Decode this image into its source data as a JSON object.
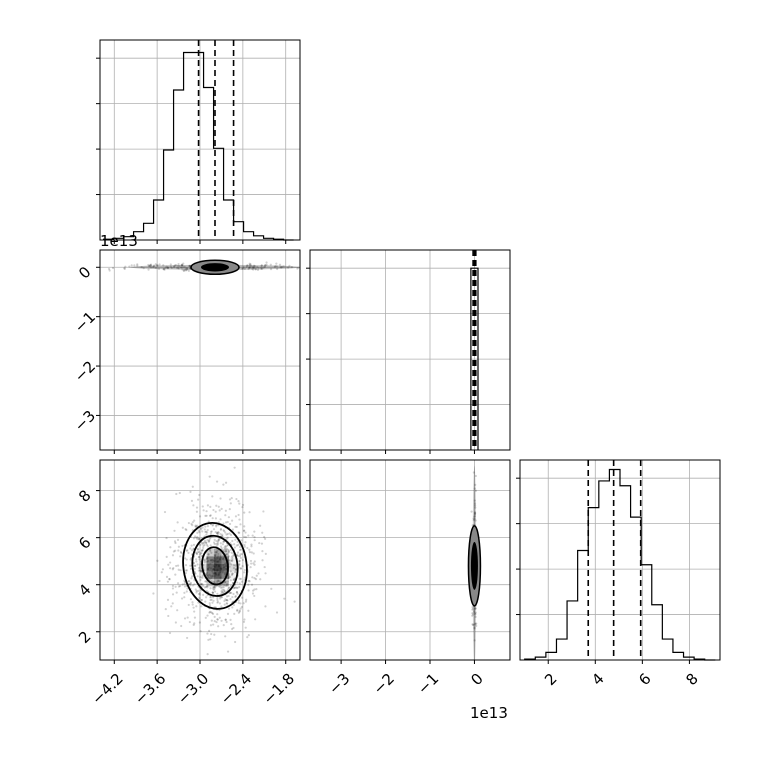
{
  "chart_data": {
    "type": "corner",
    "parameters": [
      "param-0",
      "param-1",
      "param-2"
    ],
    "grid": true,
    "panels": [
      {
        "id": "hist-0",
        "type": "histogram",
        "row": 0,
        "col": 0,
        "xlim": [
          -4.4,
          -1.6
        ],
        "bins": [
          -4.35,
          -4.21,
          -4.07,
          -3.93,
          -3.79,
          -3.65,
          -3.51,
          -3.37,
          -3.23,
          -3.09,
          -2.95,
          -2.81,
          -2.67,
          -2.53,
          -2.39,
          -2.25,
          -2.11,
          -1.97,
          -1.83,
          -1.69
        ],
        "counts": [
          1,
          2,
          4,
          10,
          20,
          48,
          108,
          180,
          225,
          225,
          183,
          110,
          48,
          22,
          10,
          5,
          2,
          1,
          0
        ],
        "ylim": [
          0,
          240
        ],
        "quantiles": [
          -3.02,
          -2.79,
          -2.53
        ]
      },
      {
        "id": "hist-1",
        "type": "histogram",
        "row": 1,
        "col": 1,
        "xlim": [
          -3.7,
          0.8
        ],
        "x_offset_label": "",
        "bins": [
          -0.08,
          0.08
        ],
        "counts": [
          1
        ],
        "ylim": [
          0,
          1.1
        ],
        "quantiles": [
          -0.03,
          0.0,
          0.03
        ]
      },
      {
        "id": "hist-2",
        "type": "histogram",
        "row": 2,
        "col": 2,
        "xlim": [
          0.8,
          9.3
        ],
        "bins": [
          1.0,
          1.45,
          1.9,
          2.35,
          2.8,
          3.25,
          3.7,
          4.15,
          4.6,
          5.05,
          5.5,
          5.95,
          6.4,
          6.85,
          7.3,
          7.75,
          8.2,
          8.65,
          9.1
        ],
        "counts": [
          1,
          3,
          8,
          22,
          62,
          115,
          160,
          188,
          200,
          183,
          150,
          100,
          58,
          22,
          8,
          3,
          1,
          0
        ],
        "ylim": [
          0,
          210
        ],
        "quantiles": [
          3.7,
          4.78,
          5.93
        ]
      },
      {
        "id": "contour-1-0",
        "type": "scatter-contour",
        "row": 1,
        "col": 0,
        "xlim": [
          -4.4,
          -1.6
        ],
        "ylim": [
          -3.7,
          0.35
        ],
        "center": [
          -2.79,
          0.0
        ],
        "y_offset_label": "1e13"
      },
      {
        "id": "contour-2-0",
        "type": "scatter-contour",
        "row": 2,
        "col": 0,
        "xlim": [
          -4.4,
          -1.6
        ],
        "ylim": [
          0.8,
          9.3
        ],
        "center": [
          -2.79,
          4.8
        ]
      },
      {
        "id": "contour-2-1",
        "type": "scatter-contour",
        "row": 2,
        "col": 1,
        "xlim": [
          -3.7,
          0.8
        ],
        "ylim": [
          0.8,
          9.3
        ],
        "center": [
          0.0,
          4.8
        ],
        "x_offset_label": "1e13"
      }
    ],
    "axis_ticks": {
      "col0_x": [
        -4.2,
        -3.6,
        -3.0,
        -2.4,
        -1.8
      ],
      "col0_x_labels": [
        "−4.2",
        "−3.6",
        "−3.0",
        "−2.4",
        "−1.8"
      ],
      "col1_x": [
        -3,
        -2,
        -1,
        0
      ],
      "col1_x_labels": [
        "−3",
        "−2",
        "−1",
        "0"
      ],
      "col2_x": [
        2,
        4,
        6,
        8
      ],
      "col2_x_labels": [
        "2",
        "4",
        "6",
        "8"
      ],
      "row1_y": [
        0,
        -1,
        -2,
        -3
      ],
      "row1_y_labels": [
        "0",
        "−1",
        "−2",
        "−3"
      ],
      "row2_y": [
        2,
        4,
        6,
        8
      ],
      "row2_y_labels": [
        "2",
        "4",
        "6",
        "8"
      ]
    },
    "offset_labels": {
      "row1_y": "1e13",
      "col1_x": "1e13"
    }
  }
}
